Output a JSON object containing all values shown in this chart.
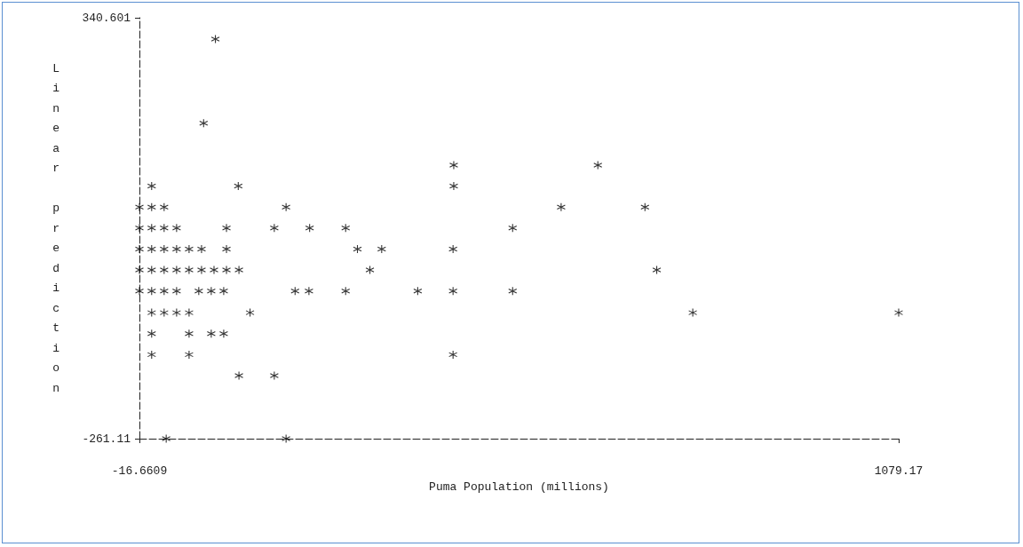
{
  "chart_data": {
    "type": "scatter",
    "xlabel": "Puma Population (millions)",
    "ylabel": "Linear prediction",
    "x": [
      93,
      76,
      437,
      645,
      1,
      126,
      437,
      -16.66,
      1,
      19,
      195,
      592,
      713,
      -16.66,
      1,
      19,
      37,
      109,
      178,
      229,
      281,
      522,
      -16.66,
      1,
      19,
      37,
      55,
      73,
      109,
      298,
      333,
      436,
      -16.66,
      1,
      19,
      37,
      55,
      73,
      91,
      109,
      127,
      316,
      730,
      -16.66,
      1,
      19,
      37,
      69,
      87,
      105,
      208,
      228,
      281,
      385,
      436,
      522,
      1,
      19,
      37,
      55,
      143,
      782,
      1079.17,
      1,
      55,
      87,
      105,
      1,
      55,
      436,
      127,
      178,
      22,
      195
    ],
    "series": [
      {
        "color": "#000000",
        "values": [
          310,
          190,
          130,
          130,
          100,
          100,
          100,
          70,
          70,
          70,
          70,
          70,
          70,
          40,
          40,
          40,
          40,
          40,
          40,
          40,
          40,
          40,
          10,
          10,
          10,
          10,
          10,
          10,
          10,
          10,
          10,
          10,
          -20,
          -20,
          -20,
          -20,
          -20,
          -20,
          -20,
          -20,
          -20,
          -20,
          -20,
          -50,
          -50,
          -50,
          -50,
          -50,
          -50,
          -50,
          -50,
          -50,
          -50,
          -50,
          -50,
          -50,
          -81,
          -81,
          -81,
          -81,
          -81,
          -81,
          -81,
          -111,
          -111,
          -111,
          -111,
          -141,
          -141,
          -141,
          -171,
          -171,
          -261.11,
          -261.11
        ]
      }
    ],
    "xlim": [
      -16.6609,
      1079.17
    ],
    "xticks": [
      -16.6609,
      1079.17
    ],
    "ylim": [
      -261.11,
      340.601
    ],
    "yticks": [
      -261.11,
      340.601
    ],
    "grid": false,
    "marker": "cross"
  }
}
